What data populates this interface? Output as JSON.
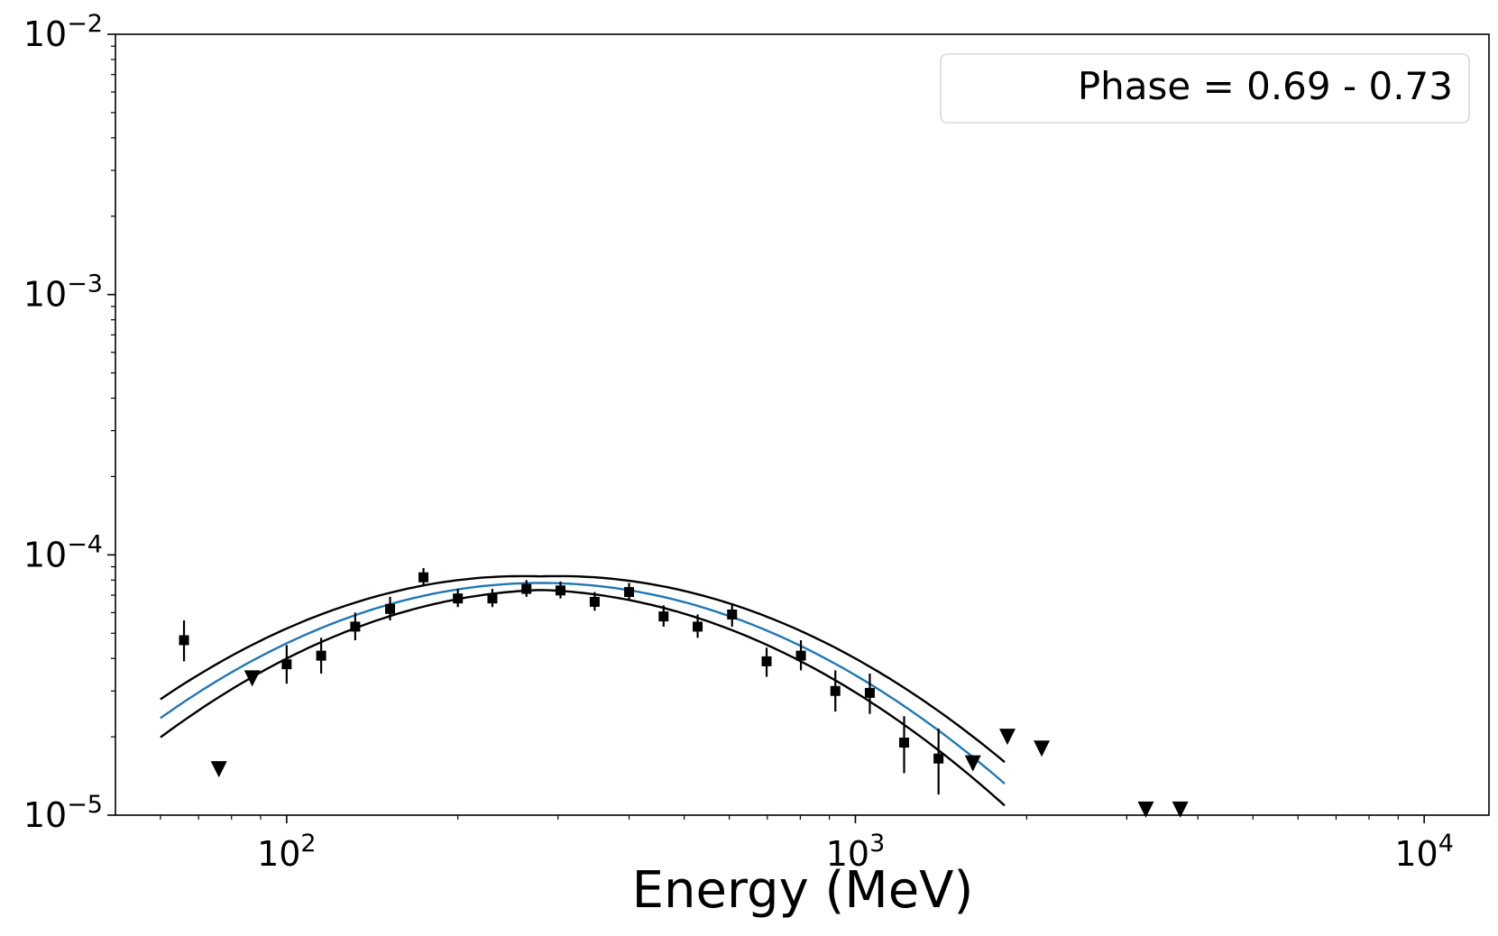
{
  "chart_data": {
    "type": "scatter",
    "xlabel": "Energy (MeV)",
    "ylabel": "",
    "x_scale": "log",
    "y_scale": "log",
    "xlim": [
      50,
      13000
    ],
    "ylim": [
      1e-05,
      0.01
    ],
    "x_ticks": [
      {
        "value": 100,
        "base": "10",
        "exp": "2"
      },
      {
        "value": 1000,
        "base": "10",
        "exp": "3"
      },
      {
        "value": 10000,
        "base": "10",
        "exp": "4"
      }
    ],
    "y_ticks": [
      {
        "value": 1e-05,
        "base": "10",
        "exp": "−5"
      },
      {
        "value": 0.0001,
        "base": "10",
        "exp": "−4"
      },
      {
        "value": 0.001,
        "base": "10",
        "exp": "−3"
      },
      {
        "value": 0.01,
        "base": "10",
        "exp": "−2"
      }
    ],
    "legend": {
      "text": "Phase = 0.69 - 0.73",
      "placement": "top-right"
    },
    "grid": false,
    "colors": {
      "points": "#000000",
      "model": "#1f77b4",
      "band": "#000000"
    },
    "points": [
      {
        "x": 66,
        "y": 4.7e-05,
        "ylo": 3.9e-05,
        "yhi": 5.6e-05
      },
      {
        "x": 100,
        "y": 3.8e-05,
        "ylo": 3.2e-05,
        "yhi": 4.5e-05
      },
      {
        "x": 115,
        "y": 4.1e-05,
        "ylo": 3.5e-05,
        "yhi": 4.8e-05
      },
      {
        "x": 132,
        "y": 5.3e-05,
        "ylo": 4.7e-05,
        "yhi": 6e-05
      },
      {
        "x": 152,
        "y": 6.2e-05,
        "ylo": 5.6e-05,
        "yhi": 6.9e-05
      },
      {
        "x": 174,
        "y": 8.2e-05,
        "ylo": 7.6e-05,
        "yhi": 8.9e-05
      },
      {
        "x": 200,
        "y": 6.8e-05,
        "ylo": 6.3e-05,
        "yhi": 7.4e-05
      },
      {
        "x": 230,
        "y": 6.8e-05,
        "ylo": 6.3e-05,
        "yhi": 7.4e-05
      },
      {
        "x": 264,
        "y": 7.4e-05,
        "ylo": 6.9e-05,
        "yhi": 8e-05
      },
      {
        "x": 303,
        "y": 7.3e-05,
        "ylo": 6.8e-05,
        "yhi": 7.9e-05
      },
      {
        "x": 348,
        "y": 6.6e-05,
        "ylo": 6.1e-05,
        "yhi": 7.2e-05
      },
      {
        "x": 400,
        "y": 7.2e-05,
        "ylo": 6.7e-05,
        "yhi": 7.8e-05
      },
      {
        "x": 460,
        "y": 5.8e-05,
        "ylo": 5.3e-05,
        "yhi": 6.4e-05
      },
      {
        "x": 528,
        "y": 5.3e-05,
        "ylo": 4.8e-05,
        "yhi": 5.9e-05
      },
      {
        "x": 607,
        "y": 5.9e-05,
        "ylo": 5.3e-05,
        "yhi": 6.5e-05
      },
      {
        "x": 698,
        "y": 3.9e-05,
        "ylo": 3.4e-05,
        "yhi": 4.4e-05
      },
      {
        "x": 802,
        "y": 4.1e-05,
        "ylo": 3.6e-05,
        "yhi": 4.7e-05
      },
      {
        "x": 922,
        "y": 3e-05,
        "ylo": 2.5e-05,
        "yhi": 3.6e-05
      },
      {
        "x": 1060,
        "y": 2.95e-05,
        "ylo": 2.45e-05,
        "yhi": 3.5e-05
      },
      {
        "x": 1218,
        "y": 1.9e-05,
        "ylo": 1.45e-05,
        "yhi": 2.4e-05
      },
      {
        "x": 1400,
        "y": 1.65e-05,
        "ylo": 1.2e-05,
        "yhi": 2.15e-05
      }
    ],
    "upper_limits": [
      {
        "x": 76,
        "y": 1.5e-05
      },
      {
        "x": 87,
        "y": 3.35e-05
      },
      {
        "x": 1609,
        "y": 1.58e-05
      },
      {
        "x": 1850,
        "y": 2e-05
      },
      {
        "x": 2126,
        "y": 1.8e-05
      },
      {
        "x": 3240,
        "y": 1.05e-05
      },
      {
        "x": 3725,
        "y": 1.05e-05
      }
    ],
    "model": {
      "type": "log-parabola",
      "x_range": [
        60,
        1830
      ],
      "peak_energy": 280,
      "peak_value": 7.8e-05,
      "curvature": 1.16,
      "band_upper_factor": 1.06,
      "band_lower_factor": 0.94,
      "band_spread": 0.32
    }
  }
}
